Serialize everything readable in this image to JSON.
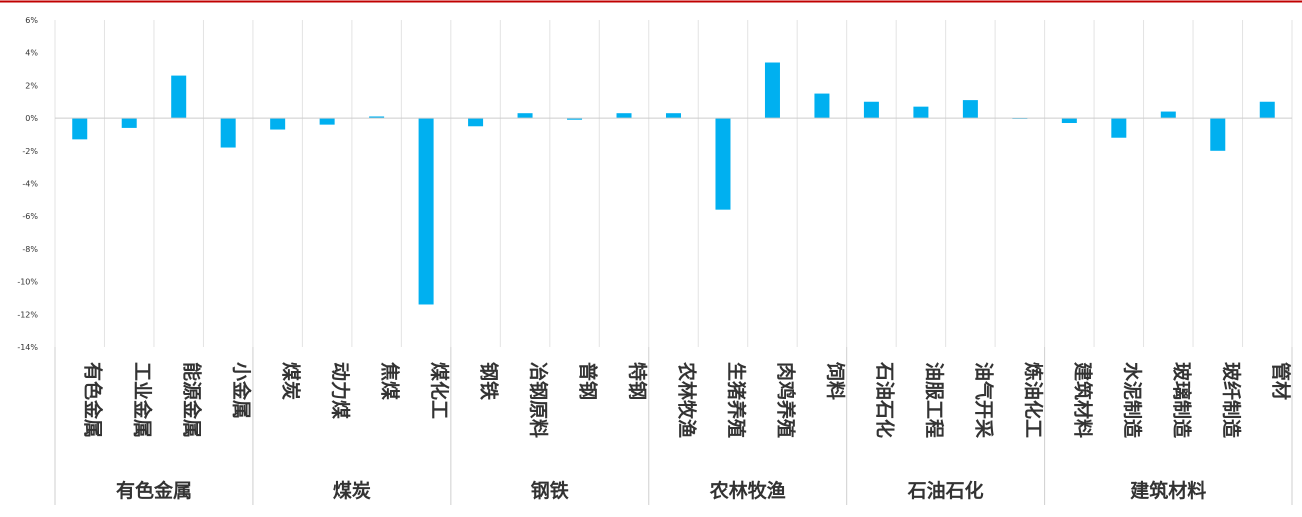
{
  "colors": {
    "top_rule": "#c00000",
    "bar": "#00b0f0",
    "grid": "#e3e3e3",
    "zero_line": "#cccccc",
    "axis_text": "#333333",
    "group_divider": "#cfcfcf"
  },
  "chart_data": {
    "type": "bar",
    "title": "",
    "xlabel": "",
    "ylabel": "",
    "ylim": [
      -14,
      6
    ],
    "y_ticks": [
      "6%",
      "4%",
      "2%",
      "0%",
      "-2%",
      "-4%",
      "-6%",
      "-8%",
      "-10%",
      "-12%",
      "-14%"
    ],
    "grid": "vertical",
    "categories": [
      "有色金属",
      "工业金属",
      "能源金属",
      "小金属",
      "煤炭",
      "动力煤",
      "焦煤",
      "煤化工",
      "钢铁",
      "冶钢原料",
      "普钢",
      "特钢",
      "农林牧渔",
      "生猪养殖",
      "肉鸡养殖",
      "饲料",
      "石油石化",
      "油服工程",
      "油气开采",
      "炼油化工",
      "建筑材料",
      "水泥制造",
      "玻璃制造",
      "玻纤制造",
      "管材"
    ],
    "values": [
      -1.3,
      -0.6,
      2.6,
      -1.8,
      -0.7,
      -0.4,
      0.1,
      -11.4,
      -0.5,
      0.3,
      -0.1,
      0.3,
      0.3,
      -5.6,
      3.4,
      1.5,
      1.0,
      0.7,
      1.1,
      0.0,
      -0.3,
      -1.2,
      0.4,
      -2.0,
      1.0
    ],
    "groups": [
      {
        "label": "有色金属",
        "count": 4
      },
      {
        "label": "煤炭",
        "count": 4
      },
      {
        "label": "钢铁",
        "count": 4
      },
      {
        "label": "农林牧渔",
        "count": 4
      },
      {
        "label": "石油石化",
        "count": 4
      },
      {
        "label": "建筑材料",
        "count": 5
      }
    ]
  }
}
